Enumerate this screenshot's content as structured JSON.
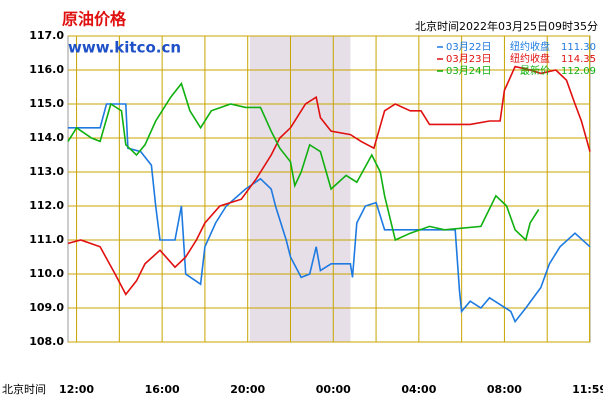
{
  "chart_data": {
    "type": "line",
    "title": "原油价格",
    "subtitle": "www.kitco.cn",
    "header": "北京时间2022年03月25日09时35分",
    "x_label": "北京时间",
    "xlim": [
      -0.4,
      24.0
    ],
    "xticks": [
      {
        "value": 0,
        "label": "12:00"
      },
      {
        "value": 4,
        "label": "16:00"
      },
      {
        "value": 8,
        "label": "20:00"
      },
      {
        "value": 12,
        "label": "00:00"
      },
      {
        "value": 16,
        "label": "04:00"
      },
      {
        "value": 20,
        "label": "08:00"
      },
      {
        "value": 23.98,
        "label": "11:59"
      }
    ],
    "xminor": [
      2,
      6,
      10,
      14,
      18,
      22
    ],
    "shade": [
      8.1,
      12.8
    ],
    "ylim": [
      108,
      117
    ],
    "yticks": [
      {
        "value": 108,
        "label": "108.0"
      },
      {
        "value": 109,
        "label": "109.0"
      },
      {
        "value": 110,
        "label": "110.0"
      },
      {
        "value": 111,
        "label": "111.0"
      },
      {
        "value": 112,
        "label": "112.0"
      },
      {
        "value": 113,
        "label": "113.0"
      },
      {
        "value": 114,
        "label": "114.0"
      },
      {
        "value": 115,
        "label": "115.0"
      },
      {
        "value": 116,
        "label": "116.0"
      },
      {
        "value": 117,
        "label": "117.0"
      }
    ],
    "grid": true,
    "grid_color": "#c8a400",
    "series": [
      {
        "name": "03月22日",
        "label": "纽约收盘",
        "last": {
          "value": 111.3,
          "label": "111.30"
        },
        "color": "#1e7ae0",
        "x": [
          -0.4,
          1.1,
          1.4,
          2.3,
          2.4,
          3.0,
          3.5,
          3.7,
          3.9,
          4.6,
          4.9,
          5.1,
          5.8,
          6.0,
          6.5,
          7.0,
          7.9,
          8.6,
          9.1,
          9.3,
          9.8,
          10.0,
          10.5,
          10.9,
          11.2,
          11.4,
          11.9,
          12.8,
          12.9,
          13.1,
          13.5,
          14.0,
          14.4,
          17.7,
          17.9,
          18.0,
          18.4,
          18.9,
          19.3,
          19.8,
          20.3,
          20.5,
          21.0,
          21.7,
          22.1,
          22.6,
          23.3,
          24.0
        ],
        "values": [
          114.3,
          114.3,
          115.0,
          115.0,
          113.7,
          113.6,
          113.2,
          112.0,
          111.0,
          111.0,
          112.0,
          110.0,
          109.7,
          110.8,
          111.5,
          112.0,
          112.5,
          112.8,
          112.5,
          112.0,
          111.0,
          110.5,
          109.9,
          110.0,
          110.8,
          110.1,
          110.3,
          110.3,
          109.9,
          111.5,
          112.0,
          112.1,
          111.3,
          111.3,
          109.5,
          108.9,
          109.2,
          109.0,
          109.3,
          109.1,
          108.9,
          108.6,
          109.0,
          109.6,
          110.3,
          110.8,
          111.2,
          110.8
        ]
      },
      {
        "name": "03月23日",
        "label": "纽约收盘",
        "last": {
          "value": 114.35,
          "label": "114.35"
        },
        "color": "#e01010",
        "x": [
          -0.4,
          0.2,
          1.1,
          1.8,
          2.3,
          2.8,
          3.2,
          3.9,
          4.6,
          5.1,
          5.6,
          6.0,
          6.7,
          7.7,
          8.4,
          9.1,
          9.5,
          10.0,
          10.7,
          11.2,
          11.4,
          11.9,
          12.8,
          13.3,
          13.9,
          14.4,
          14.9,
          15.6,
          16.1,
          16.5,
          18.4,
          19.3,
          19.8,
          20.0,
          20.5,
          21.2,
          21.7,
          22.4,
          22.9,
          23.3,
          23.6,
          24.0
        ],
        "values": [
          110.9,
          111.0,
          110.8,
          110.0,
          109.4,
          109.8,
          110.3,
          110.7,
          110.2,
          110.5,
          111.0,
          111.5,
          112.0,
          112.2,
          112.8,
          113.5,
          114.0,
          114.3,
          115.0,
          115.2,
          114.6,
          114.2,
          114.1,
          113.9,
          113.7,
          114.8,
          115.0,
          114.8,
          114.8,
          114.4,
          114.4,
          114.5,
          114.5,
          115.4,
          116.1,
          116.0,
          115.9,
          116.0,
          115.7,
          115.0,
          114.5,
          113.6
        ]
      },
      {
        "name": "03月24日",
        "label": "最新价",
        "last": {
          "value": 112.09,
          "label": "112.09"
        },
        "color": "#10b010",
        "x": [
          -0.4,
          0,
          0.7,
          1.1,
          1.6,
          2.1,
          2.3,
          2.8,
          3.2,
          3.7,
          4.4,
          4.9,
          5.3,
          5.8,
          6.3,
          7.2,
          7.9,
          8.6,
          9.1,
          9.5,
          10.0,
          10.2,
          10.5,
          10.9,
          11.4,
          11.9,
          12.6,
          13.1,
          13.8,
          14.2,
          14.4,
          14.9,
          15.6,
          16.5,
          17.2,
          18.9,
          19.6,
          20.1,
          20.5,
          21.0,
          21.2,
          21.6
        ],
        "values": [
          113.9,
          114.3,
          114.0,
          113.9,
          115.0,
          114.8,
          113.8,
          113.5,
          113.8,
          114.5,
          115.2,
          115.6,
          114.8,
          114.3,
          114.8,
          115.0,
          114.9,
          114.9,
          114.2,
          113.7,
          113.3,
          112.6,
          113.0,
          113.8,
          113.6,
          112.5,
          112.9,
          112.7,
          113.5,
          113.0,
          112.3,
          111.0,
          111.2,
          111.4,
          111.3,
          111.4,
          112.3,
          112.0,
          111.3,
          111.0,
          111.5,
          111.9
        ]
      }
    ]
  }
}
